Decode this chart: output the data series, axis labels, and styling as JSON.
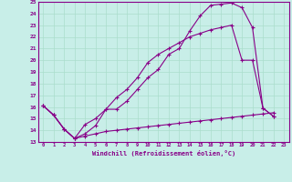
{
  "xlabel": "Windchill (Refroidissement éolien,°C)",
  "bg_color": "#c8eee8",
  "line_color": "#880088",
  "grid_color": "#aaddcc",
  "xlim": [
    -0.5,
    23.5
  ],
  "ylim": [
    13,
    25
  ],
  "yticks": [
    13,
    14,
    15,
    16,
    17,
    18,
    19,
    20,
    21,
    22,
    23,
    24,
    25
  ],
  "xticks": [
    0,
    1,
    2,
    3,
    4,
    5,
    6,
    7,
    8,
    9,
    10,
    11,
    12,
    13,
    14,
    15,
    16,
    17,
    18,
    19,
    20,
    21,
    22,
    23
  ],
  "series": [
    {
      "x": [
        0,
        1,
        2,
        3,
        4,
        5,
        6,
        7,
        8,
        9,
        10,
        11,
        12,
        13,
        14,
        15,
        16,
        17,
        18,
        19,
        20,
        21,
        22
      ],
      "y": [
        16.1,
        15.3,
        14.1,
        13.3,
        13.7,
        14.4,
        15.8,
        15.8,
        16.5,
        17.5,
        18.5,
        19.2,
        20.5,
        21.0,
        22.5,
        23.8,
        24.7,
        24.8,
        24.9,
        24.5,
        22.8,
        15.9,
        15.2
      ]
    },
    {
      "x": [
        0,
        1,
        2,
        3,
        4,
        5,
        6,
        7,
        8,
        9,
        10,
        11,
        12,
        13,
        14,
        15,
        16,
        17,
        18,
        19,
        20,
        21,
        22
      ],
      "y": [
        16.1,
        15.3,
        14.1,
        13.3,
        14.5,
        15.0,
        15.8,
        16.8,
        17.5,
        18.5,
        19.8,
        20.5,
        21.0,
        21.5,
        22.0,
        22.3,
        22.6,
        22.8,
        23.0,
        20.0,
        20.0,
        15.9,
        15.2
      ]
    },
    {
      "x": [
        0,
        1,
        2,
        3,
        4,
        5,
        6,
        7,
        8,
        9,
        10,
        11,
        12,
        13,
        14,
        15,
        16,
        17,
        18,
        19,
        20,
        21,
        22
      ],
      "y": [
        16.1,
        15.3,
        14.1,
        13.3,
        13.5,
        13.7,
        13.9,
        14.0,
        14.1,
        14.2,
        14.3,
        14.4,
        14.5,
        14.6,
        14.7,
        14.8,
        14.9,
        15.0,
        15.1,
        15.2,
        15.3,
        15.4,
        15.5
      ]
    }
  ]
}
